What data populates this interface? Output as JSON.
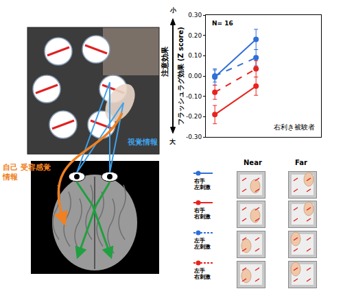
{
  "chart_data": {
    "type": "line",
    "categories": [
      "Near",
      "Far"
    ],
    "series": [
      {
        "name": "右手 左刺激",
        "color": "#2f6fd6",
        "line_style": "solid",
        "marker": "circle",
        "values": [
          -0.005,
          0.18
        ],
        "errors": [
          0.04,
          0.05
        ]
      },
      {
        "name": "右手 右刺激",
        "color": "#e8231e",
        "line_style": "solid",
        "marker": "circle",
        "values": [
          -0.19,
          -0.05
        ],
        "errors": [
          0.045,
          0.045
        ]
      },
      {
        "name": "左手 左刺激",
        "color": "#2f6fd6",
        "line_style": "dashed",
        "marker": "circle",
        "values": [
          0.0,
          0.09
        ],
        "errors": [
          0.03,
          0.04
        ]
      },
      {
        "name": "左手 右刺激",
        "color": "#e8231e",
        "line_style": "dashed",
        "marker": "circle",
        "values": [
          -0.08,
          0.035
        ],
        "errors": [
          0.035,
          0.04
        ]
      }
    ],
    "ylim": [
      -0.3,
      0.3
    ],
    "yticks": [
      {
        "value": -0.3,
        "label": "-0.30"
      },
      {
        "value": -0.2,
        "label": "-0.20"
      },
      {
        "value": -0.1,
        "label": "-0.10"
      },
      {
        "value": 0,
        "label": "0.00"
      },
      {
        "value": 0.1,
        "label": "0.10"
      },
      {
        "value": 0.2,
        "label": "0.20"
      },
      {
        "value": 0.3,
        "label": "0.30"
      }
    ],
    "y_label": "フラッシュラグ効果 (Z score)",
    "y_arrow": {
      "text": "注意効果",
      "top": "小",
      "bottom": "大"
    },
    "annotations": [
      "N= 16",
      "右利き被験者"
    ],
    "grid": false,
    "tick_labels": "y",
    "illustration": {
      "visual_label": "視覚情報",
      "proprio_label": [
        "自己 受容感覚",
        "情報"
      ]
    }
  }
}
